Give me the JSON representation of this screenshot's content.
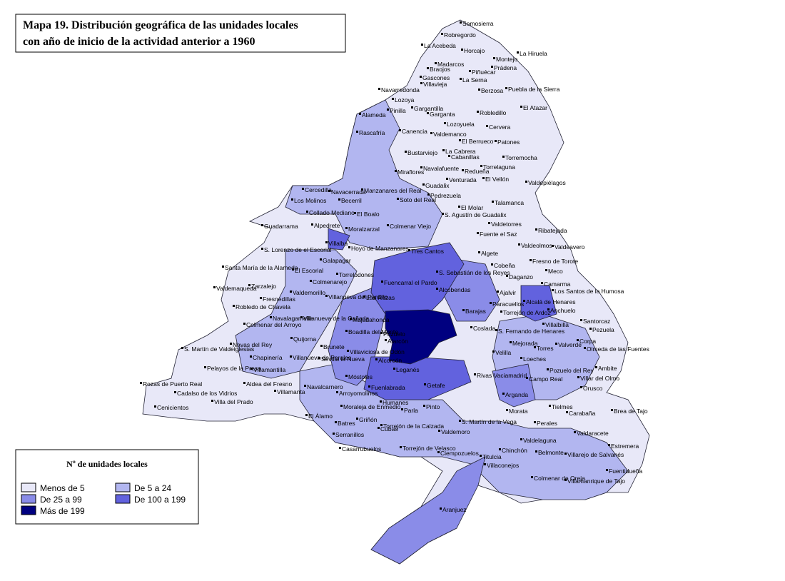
{
  "title": {
    "lines": [
      "Mapa 19. Distribución geográfica de las unidades locales",
      "con año de inicio de la actividad anterior a 1960"
    ]
  },
  "legend": {
    "title": "Nº de unidades locales",
    "items": [
      {
        "label": "Menos de 5",
        "color": "#e8e8f8"
      },
      {
        "label": "De 5 a 24",
        "color": "#b2b6f0"
      },
      {
        "label": "De 25 a 99",
        "color": "#8a8ce8"
      },
      {
        "label": "De 100 a 199",
        "color": "#6262de"
      },
      {
        "label": "Más de 199",
        "color": "#000080"
      }
    ]
  },
  "municipalities": [
    "Somosierra",
    "Robregordo",
    "La Acebeda",
    "Horcajo",
    "La Hiruela",
    "Montejo",
    "Madarcos",
    "Braojos",
    "Prádena",
    "Piñuécar",
    "Gascones",
    "La Serna",
    "Villavieja",
    "Berzosa",
    "Puebla de la Sierra",
    "Navarredonda",
    "Lozoya",
    "Gargantilla",
    "Pinilla",
    "Garganta",
    "Robledillo",
    "El Atazar",
    "Alameda",
    "Lozoyuela",
    "Cervera",
    "Rascafría",
    "Canencia",
    "Valdemanco",
    "El Berrueco",
    "Patones",
    "Bustarviejo",
    "La Cabrera",
    "Cabanillas",
    "Torremocha",
    "Navalafuente",
    "Torrelaguna",
    "Miraflores",
    "Redueña",
    "Guadalix",
    "Venturada",
    "El Vellón",
    "Valdepiélagos",
    "Talamanca",
    "Pedrezuela",
    "Manzanares del Real",
    "Soto del Real",
    "Cercedilla",
    "Navacerrada",
    "Becerril",
    "Los Molinos",
    "Collado Mediano",
    "El Molar",
    "S. Agustín de Guadalix",
    "El Boalo",
    "Colmenar Viejo",
    "Alpedrete",
    "Guadarrama",
    "Moralzarzal",
    "Valdetorres",
    "Ribatejada",
    "Fuente el Saz",
    "Villalba",
    "Hoyo de Manzanares",
    "Valdeolmos",
    "Algete",
    "Valdeavero",
    "S. Lorenzo de el Escorial",
    "Tres Cantos",
    "Fresno de Torote",
    "Santa María de la Alameda",
    "El Escorial",
    "Galapagar",
    "Torrelodones",
    "Fuencarral el Pardo",
    "S. Sebastián de los Reyes",
    "Cobeña",
    "Daganzo",
    "Meco",
    "Camarma",
    "Zarzalejo",
    "Colmenarejo",
    "Valdemaqueda",
    "Valdemorillo",
    "Villanueva del Pardillo",
    "Las Rozas",
    "Alcobendas",
    "Ajalvir",
    "Los Santos de la Humosa",
    "Alcalá de Henares",
    "Fresnedillas",
    "Robledo de Chavela",
    "Paracuellos",
    "Torrejón de Ardoz",
    "Anchuelo",
    "Navalagamella",
    "Villanueva de la Cañada",
    "Majadahonda",
    "Barajas",
    "Colmenar del Arroyo",
    "Villalbilla",
    "Santorcaz",
    "Pezuela",
    "Quijorna",
    "Boadilla del Monte",
    "Pozuelo",
    "Coslada",
    "S. Fernando de Henares",
    "Mejorada",
    "Valverde",
    "Corpa",
    "Olmeda de las Fuentes",
    "Navas del Rey",
    "S. Martín de Valdeiglesias",
    "Brunete",
    "Villanueva de Perales",
    "Sevilla la Nueva",
    "Villaviciosa de Odón",
    "Alarcón",
    "Velilla",
    "Torres",
    "Chapinería",
    "Loeches",
    "Ambite",
    "Alcorcón",
    "Pelayos de la Presa",
    "Villamantilla",
    "Leganés",
    "Rivas Vaciamadrid",
    "Pozuelo del Rey",
    "Villar del Olmo",
    "Rozas de Puerto Real",
    "Aldea del Fresno",
    "Navalcarnero",
    "Móstoles",
    "Fuenlabrada",
    "Getafe",
    "Campo Real",
    "Orusco",
    "Cadalso de los Vidrios",
    "Villamanta",
    "Arganda",
    "Arroyomolinos",
    "Humanes",
    "Tielmes",
    "Carabaña",
    "Brea de Tajo",
    "Villa del Prado",
    "Cenicientos",
    "Pinto",
    "Moraleja de Enmedio",
    "Parla",
    "Morata",
    "El Álamo",
    "S. Martín de la Vega",
    "Valdaracete",
    "Griñón",
    "Batres",
    "Perales",
    "Torrejón de la Calzada",
    "Serranillos",
    "Cubas",
    "Valdemoro",
    "Valdelaguna",
    "Estremera",
    "Torrejón de Velasco",
    "Casarrubuelos",
    "Ciempozuelos",
    "Chinchón",
    "Belmonte",
    "Villarejo de Salvanés",
    "Titulcia",
    "Villaconejos",
    "Fuentidueña",
    "Colmenar de Oreja",
    "Villamanrique de Tajo",
    "Aranjuez"
  ]
}
